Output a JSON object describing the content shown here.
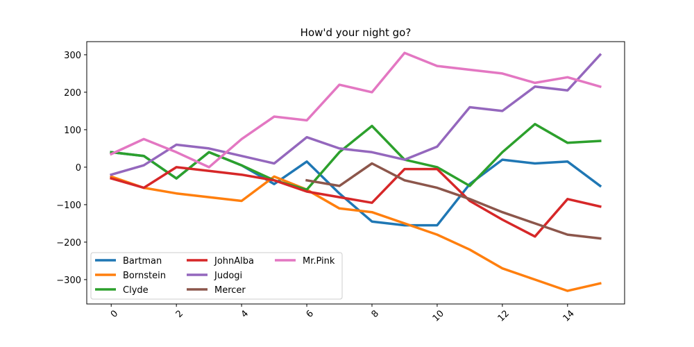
{
  "chart_data": {
    "type": "line",
    "title": "How'd your night go?",
    "xlabel": "",
    "ylabel": "",
    "xlim": [
      -0.75,
      15.75
    ],
    "ylim": [
      -365,
      335
    ],
    "xticks": [
      0,
      2,
      4,
      6,
      8,
      10,
      12,
      14
    ],
    "xtick_labels": [
      "0",
      "2",
      "4",
      "6",
      "8",
      "10",
      "12",
      "14"
    ],
    "xtick_rotation": 45,
    "yticks": [
      -300,
      -200,
      -100,
      0,
      100,
      200,
      300
    ],
    "ytick_labels": [
      "−300",
      "−200",
      "−100",
      "0",
      "100",
      "200",
      "300"
    ],
    "grid": false,
    "legend_position": "lower-left",
    "legend_columns": 3,
    "series": [
      {
        "name": "Bartman",
        "color": "#1f77b4",
        "x": [
          0,
          1,
          2,
          3,
          4,
          5,
          6,
          7,
          8,
          9,
          10,
          11,
          12,
          13,
          14,
          15
        ],
        "values": [
          40,
          30,
          -30,
          40,
          5,
          -45,
          15,
          -70,
          -145,
          -155,
          -155,
          -45,
          20,
          10,
          15,
          -50
        ]
      },
      {
        "name": "Bornstein",
        "color": "#ff7f0e",
        "x": [
          0,
          1,
          2,
          3,
          4,
          5,
          6,
          7,
          8,
          9,
          10,
          11,
          12,
          13,
          14,
          15
        ],
        "values": [
          -25,
          -55,
          -70,
          -80,
          -90,
          -25,
          -60,
          -110,
          -120,
          -150,
          -180,
          -220,
          -270,
          -300,
          -330,
          -310
        ]
      },
      {
        "name": "Clyde",
        "color": "#2ca02c",
        "x": [
          0,
          1,
          2,
          3,
          4,
          5,
          6,
          7,
          8,
          9,
          10,
          11,
          12,
          13,
          14,
          15
        ],
        "values": [
          40,
          30,
          -30,
          40,
          5,
          -35,
          -60,
          40,
          110,
          20,
          0,
          -50,
          40,
          115,
          65,
          70
        ]
      },
      {
        "name": "JohnAlba",
        "color": "#d62728",
        "x": [
          0,
          1,
          2,
          3,
          4,
          5,
          6,
          7,
          8,
          9,
          10,
          11,
          12,
          13,
          14,
          15
        ],
        "values": [
          -30,
          -55,
          0,
          -10,
          -20,
          -35,
          -65,
          -80,
          -95,
          -5,
          -5,
          -90,
          -140,
          -185,
          -85,
          -105
        ]
      },
      {
        "name": "Judogi",
        "color": "#9467bd",
        "x": [
          0,
          1,
          2,
          3,
          4,
          5,
          6,
          7,
          8,
          9,
          10,
          11,
          12,
          13,
          14,
          15
        ],
        "values": [
          -20,
          5,
          60,
          50,
          30,
          10,
          80,
          50,
          40,
          20,
          55,
          160,
          150,
          215,
          205,
          300
        ]
      },
      {
        "name": "Mercer",
        "color": "#8c564b",
        "x": [
          6,
          7,
          8,
          9,
          10,
          11,
          12,
          13,
          14,
          15
        ],
        "values": [
          -35,
          -50,
          10,
          -35,
          -55,
          -85,
          -120,
          -150,
          -180,
          -190
        ]
      },
      {
        "name": "Mr.Pink",
        "color": "#e377c2",
        "x": [
          0,
          1,
          2,
          3,
          4,
          5,
          6,
          7,
          8,
          9,
          10,
          11,
          12,
          13,
          14,
          15
        ],
        "values": [
          35,
          75,
          40,
          0,
          75,
          135,
          125,
          220,
          200,
          305,
          270,
          260,
          250,
          225,
          240,
          215
        ]
      }
    ]
  }
}
